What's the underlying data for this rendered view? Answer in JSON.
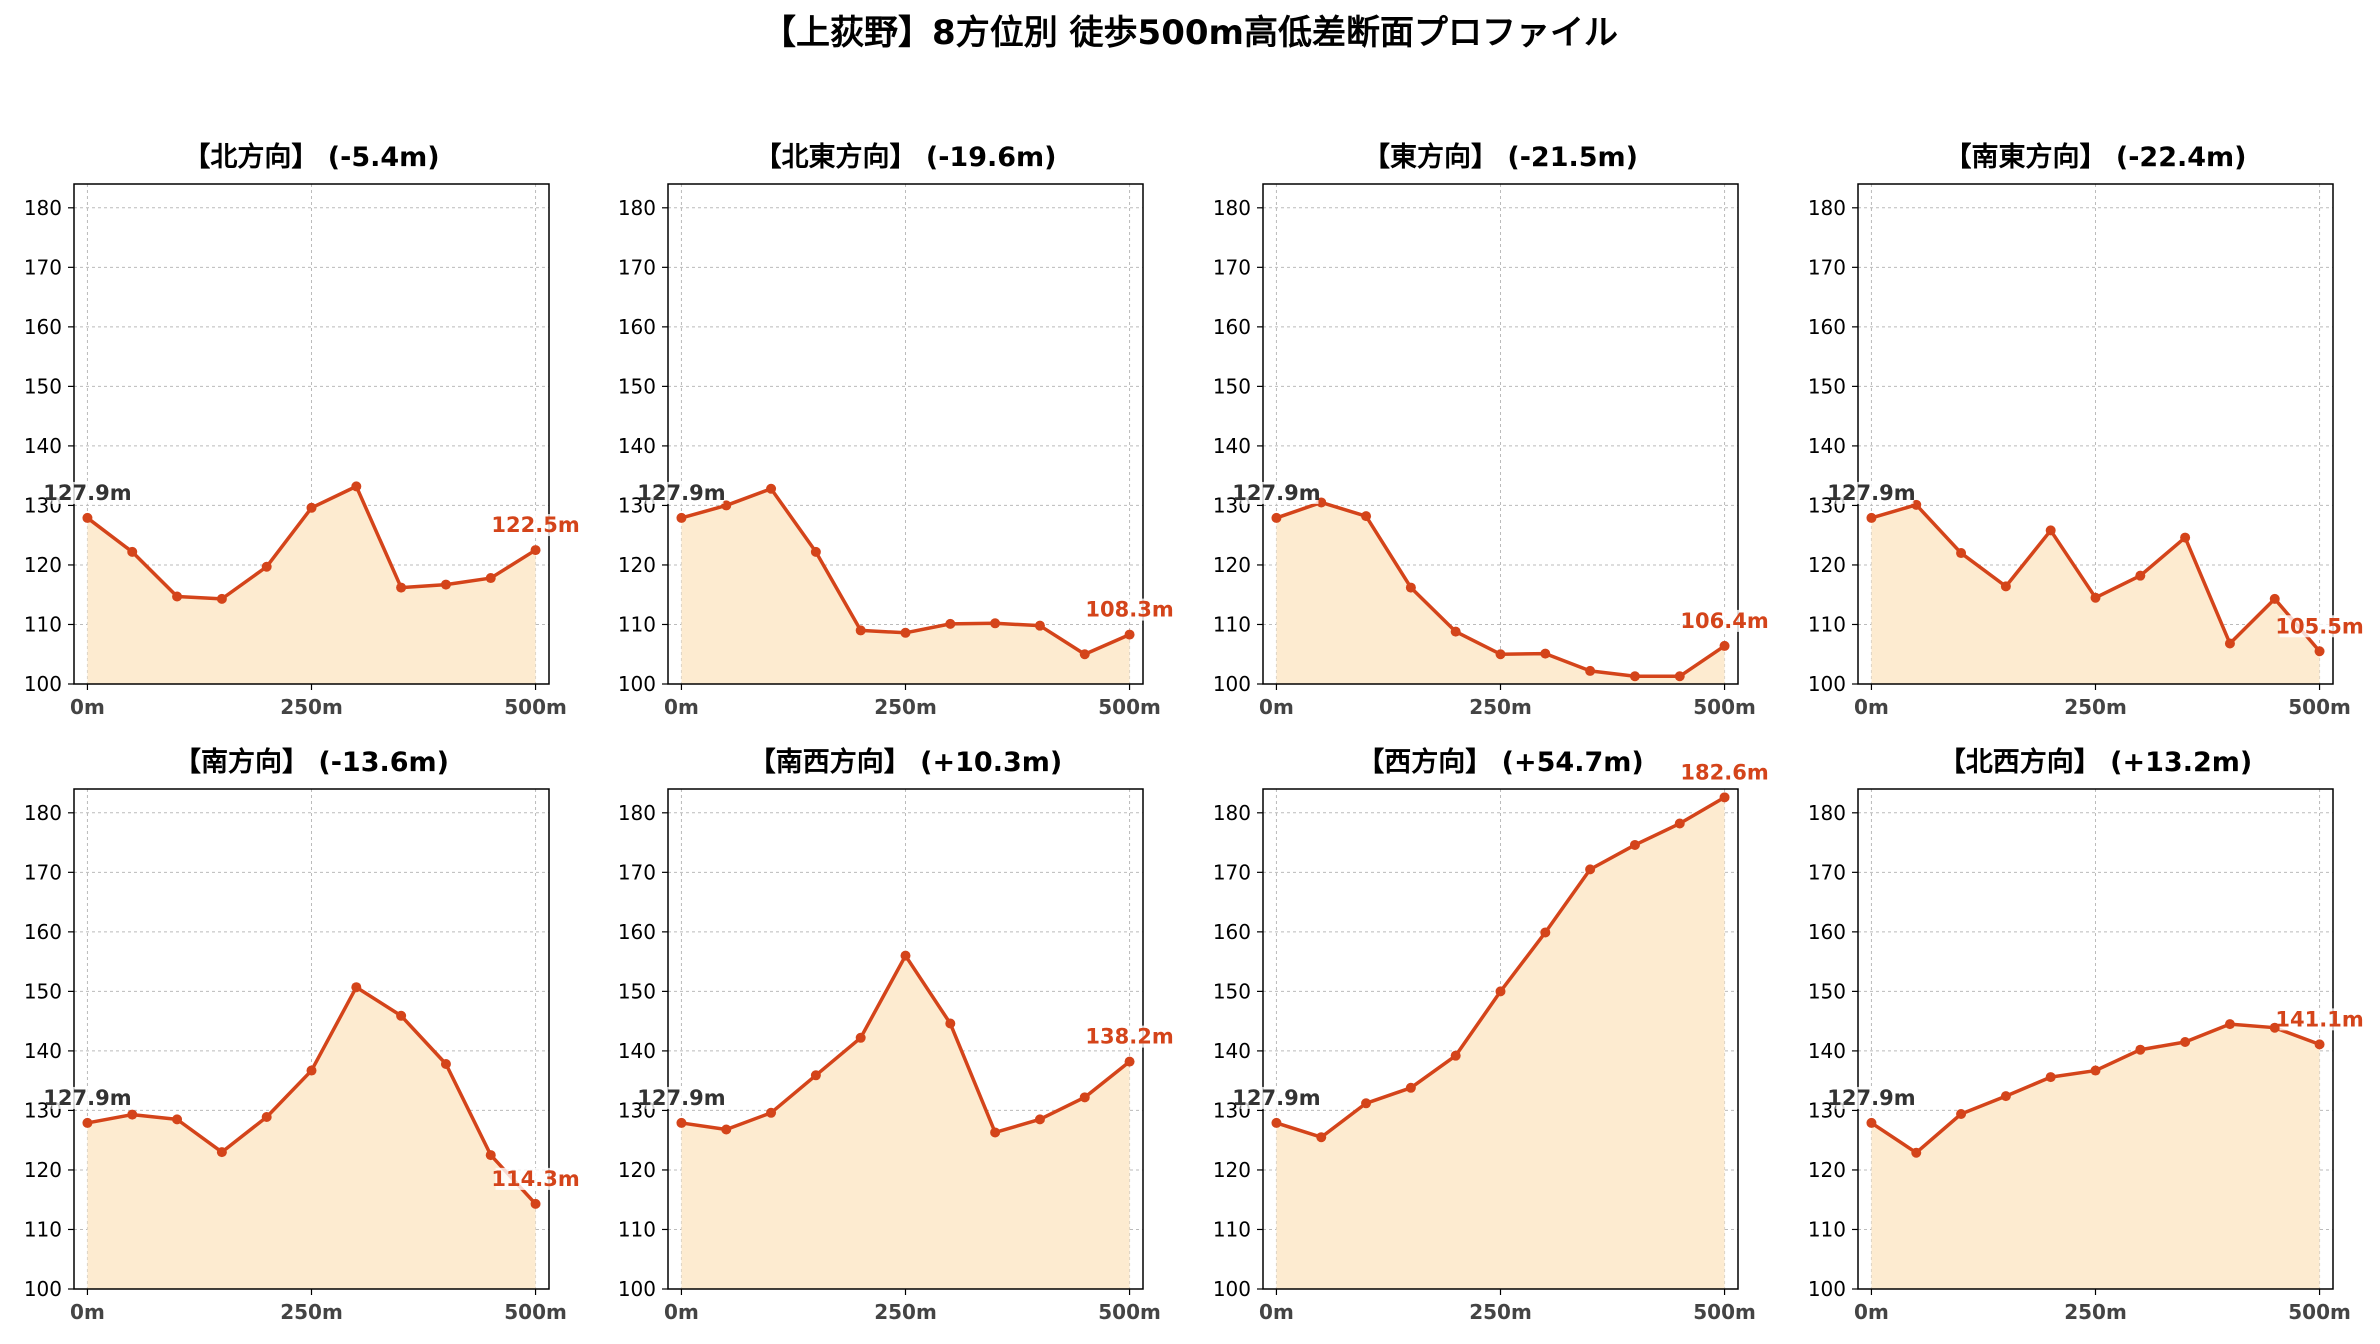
{
  "title": "【上荻野】8方位別 徒歩500m高低差断面プロファイル",
  "colors": {
    "line": "#d4441a",
    "fill": "#fdebd0",
    "start_label": "#333333",
    "end_label": "#d4441a",
    "grid": "#bbbbbb",
    "axis": "#000000"
  },
  "chart_data": [
    {
      "type": "line",
      "title": "【北方向】 (-5.4m)",
      "x": [
        0,
        50,
        100,
        150,
        200,
        250,
        300,
        350,
        400,
        450,
        500
      ],
      "values": [
        127.9,
        122.2,
        114.7,
        114.3,
        119.7,
        129.6,
        133.2,
        116.2,
        116.7,
        117.8,
        122.5
      ],
      "start_label": "127.9m",
      "end_label": "122.5m",
      "xticks": [
        "0m",
        "250m",
        "500m"
      ],
      "xtick_values": [
        0,
        250,
        500
      ],
      "yticks": [
        100,
        110,
        120,
        130,
        140,
        150,
        160,
        170,
        180
      ],
      "ylim": [
        100,
        184
      ],
      "xlim": [
        -15,
        515
      ],
      "grid": true
    },
    {
      "type": "line",
      "title": "【北東方向】 (-19.6m)",
      "x": [
        0,
        50,
        100,
        150,
        200,
        250,
        300,
        350,
        400,
        450,
        500
      ],
      "values": [
        127.9,
        130.0,
        132.8,
        122.2,
        109.0,
        108.6,
        110.1,
        110.2,
        109.8,
        105.0,
        108.3
      ],
      "start_label": "127.9m",
      "end_label": "108.3m",
      "xticks": [
        "0m",
        "250m",
        "500m"
      ],
      "xtick_values": [
        0,
        250,
        500
      ],
      "yticks": [
        100,
        110,
        120,
        130,
        140,
        150,
        160,
        170,
        180
      ],
      "ylim": [
        100,
        184
      ],
      "xlim": [
        -15,
        515
      ],
      "grid": true
    },
    {
      "type": "line",
      "title": "【東方向】 (-21.5m)",
      "x": [
        0,
        50,
        100,
        150,
        200,
        250,
        300,
        350,
        400,
        450,
        500
      ],
      "values": [
        127.9,
        130.5,
        128.2,
        116.2,
        108.8,
        105.0,
        105.1,
        102.2,
        101.3,
        101.3,
        106.4
      ],
      "start_label": "127.9m",
      "end_label": "106.4m",
      "xticks": [
        "0m",
        "250m",
        "500m"
      ],
      "xtick_values": [
        0,
        250,
        500
      ],
      "yticks": [
        100,
        110,
        120,
        130,
        140,
        150,
        160,
        170,
        180
      ],
      "ylim": [
        100,
        184
      ],
      "xlim": [
        -15,
        515
      ],
      "grid": true
    },
    {
      "type": "line",
      "title": "【南東方向】 (-22.4m)",
      "x": [
        0,
        50,
        100,
        150,
        200,
        250,
        300,
        350,
        400,
        450,
        500
      ],
      "values": [
        127.9,
        130.1,
        122.0,
        116.4,
        125.8,
        114.5,
        118.2,
        124.6,
        106.8,
        114.3,
        105.5
      ],
      "start_label": "127.9m",
      "end_label": "105.5m",
      "xticks": [
        "0m",
        "250m",
        "500m"
      ],
      "xtick_values": [
        0,
        250,
        500
      ],
      "yticks": [
        100,
        110,
        120,
        130,
        140,
        150,
        160,
        170,
        180
      ],
      "ylim": [
        100,
        184
      ],
      "xlim": [
        -15,
        515
      ],
      "grid": true
    },
    {
      "type": "line",
      "title": "【南方向】 (-13.6m)",
      "x": [
        0,
        50,
        100,
        150,
        200,
        250,
        300,
        350,
        400,
        450,
        500
      ],
      "values": [
        127.9,
        129.3,
        128.5,
        123.0,
        128.9,
        136.7,
        150.7,
        145.9,
        137.8,
        122.5,
        114.3
      ],
      "start_label": "127.9m",
      "end_label": "114.3m",
      "xticks": [
        "0m",
        "250m",
        "500m"
      ],
      "xtick_values": [
        0,
        250,
        500
      ],
      "yticks": [
        100,
        110,
        120,
        130,
        140,
        150,
        160,
        170,
        180
      ],
      "ylim": [
        100,
        184
      ],
      "xlim": [
        -15,
        515
      ],
      "grid": true
    },
    {
      "type": "line",
      "title": "【南西方向】 (+10.3m)",
      "x": [
        0,
        50,
        100,
        150,
        200,
        250,
        300,
        350,
        400,
        450,
        500
      ],
      "values": [
        127.9,
        126.8,
        129.6,
        135.9,
        142.2,
        156.0,
        144.6,
        126.3,
        128.5,
        132.2,
        138.2
      ],
      "start_label": "127.9m",
      "end_label": "138.2m",
      "xticks": [
        "0m",
        "250m",
        "500m"
      ],
      "xtick_values": [
        0,
        250,
        500
      ],
      "yticks": [
        100,
        110,
        120,
        130,
        140,
        150,
        160,
        170,
        180
      ],
      "ylim": [
        100,
        184
      ],
      "xlim": [
        -15,
        515
      ],
      "grid": true
    },
    {
      "type": "line",
      "title": "【西方向】 (+54.7m)",
      "x": [
        0,
        50,
        100,
        150,
        200,
        250,
        300,
        350,
        400,
        450,
        500
      ],
      "values": [
        127.9,
        125.5,
        131.2,
        133.8,
        139.2,
        150.0,
        159.9,
        170.5,
        174.6,
        178.2,
        182.6
      ],
      "start_label": "127.9m",
      "end_label": "182.6m",
      "xticks": [
        "0m",
        "250m",
        "500m"
      ],
      "xtick_values": [
        0,
        250,
        500
      ],
      "yticks": [
        100,
        110,
        120,
        130,
        140,
        150,
        160,
        170,
        180
      ],
      "ylim": [
        100,
        184
      ],
      "xlim": [
        -15,
        515
      ],
      "grid": true
    },
    {
      "type": "line",
      "title": "【北西方向】 (+13.2m)",
      "x": [
        0,
        50,
        100,
        150,
        200,
        250,
        300,
        350,
        400,
        450,
        500
      ],
      "values": [
        127.9,
        122.9,
        129.4,
        132.4,
        135.6,
        136.7,
        140.2,
        141.5,
        144.5,
        143.9,
        141.1
      ],
      "start_label": "127.9m",
      "end_label": "141.1m",
      "xticks": [
        "0m",
        "250m",
        "500m"
      ],
      "xtick_values": [
        0,
        250,
        500
      ],
      "yticks": [
        100,
        110,
        120,
        130,
        140,
        150,
        160,
        170,
        180
      ],
      "ylim": [
        100,
        184
      ],
      "xlim": [
        -15,
        515
      ],
      "grid": true
    }
  ]
}
